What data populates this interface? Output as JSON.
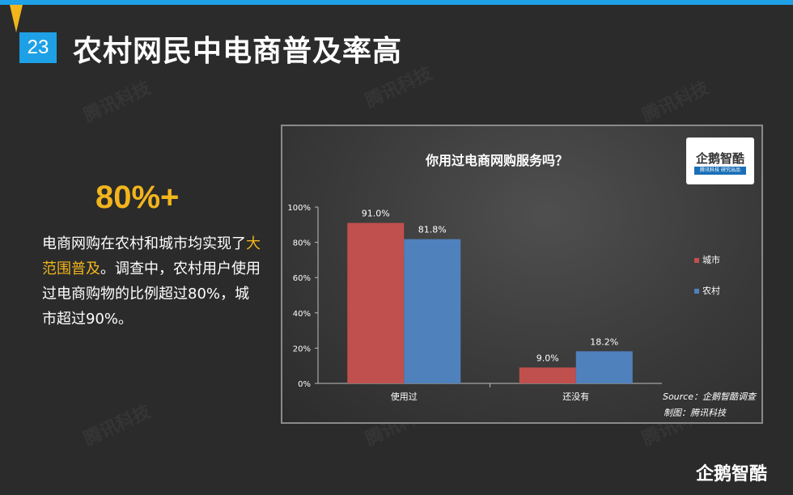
{
  "slide": {
    "number": "23",
    "title": "农村网民中电商普及率高"
  },
  "watermark": "腾讯科技",
  "highlight": "80%+",
  "description": {
    "part1": "电商网购在农村和城市均实现了",
    "highlight": "大范围普及",
    "part2": "。调查中，农村用户使用过电商购物的比例超过80%，城市超过90%。"
  },
  "logo": {
    "main": "企鹅智酷",
    "sub_left": "腾讯科技",
    "sub_right": "研究出品"
  },
  "bottom_logo": "企鹅智酷",
  "colors": {
    "accent_blue": "#1ea0e6",
    "accent_yellow": "#f2b51c",
    "city_red": "#c0504d",
    "rural_blue": "#4f81bd"
  },
  "chart_data": {
    "type": "bar",
    "title": "你用过电商网购服务吗？",
    "categories": [
      "使用过",
      "还没有"
    ],
    "series": [
      {
        "name": "城市",
        "values": [
          91.0,
          9.0
        ],
        "labels": [
          "91.0%",
          "9.0%"
        ],
        "color": "#c0504d"
      },
      {
        "name": "农村",
        "values": [
          81.8,
          18.2
        ],
        "labels": [
          "81.8%",
          "18.2%"
        ],
        "color": "#4f81bd"
      }
    ],
    "y_ticks": [
      "0%",
      "20%",
      "40%",
      "60%",
      "80%",
      "100%"
    ],
    "ylim": [
      0,
      100
    ],
    "legend_position": "right",
    "grid": false,
    "source": "Source：企鹅智酷调查",
    "credit": "制图：腾讯科技"
  }
}
